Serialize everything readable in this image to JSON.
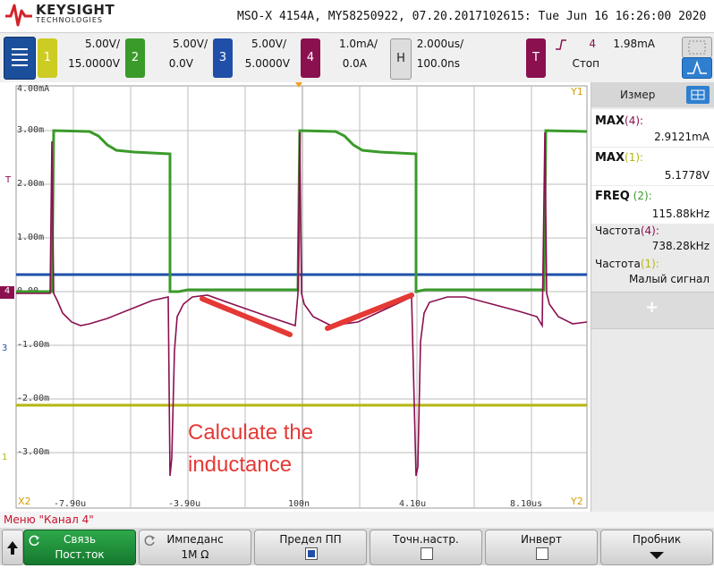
{
  "header": {
    "brand": "KEYSIGHT",
    "brand_sub": "TECHNOLOGIES",
    "title": "MSO-X 4154A, MY58250922, 07.20.2017102615: Tue Jun 16 16:26:00 2020"
  },
  "channels": [
    {
      "num": "1",
      "scale": "5.00V/",
      "offset": "15.0000V",
      "color": "#cccc22"
    },
    {
      "num": "2",
      "scale": "5.00V/",
      "offset": "0.0V",
      "color": "#3a9a2a"
    },
    {
      "num": "3",
      "scale": "5.00V/",
      "offset": "5.0000V",
      "color": "#1f4fa8"
    },
    {
      "num": "4",
      "scale": "1.0mA/",
      "offset": "0.0A",
      "color": "#8a1050"
    }
  ],
  "horizontal": {
    "label": "H",
    "scale": "2.000us/",
    "delay": "100.0ns"
  },
  "trigger": {
    "label": "T",
    "channel": "4",
    "level": "1.98mA",
    "state": "Стоп"
  },
  "yaxis": [
    "4.00mA",
    "3.00m",
    "2.00m",
    "1.00m",
    "0.00",
    "-1.00m",
    "-2.00m",
    "-3.00m"
  ],
  "xaxis": [
    "-7.90u",
    "-3.90u",
    "100n",
    "4.10u",
    "8.10us"
  ],
  "markers": {
    "y1": "Y1",
    "y2": "Y2",
    "x2": "X2",
    "ch4": "4",
    "ch3": "3",
    "ch1": "1",
    "trig": "T"
  },
  "annotation": {
    "line1": "Calculate the",
    "line2": "inductance",
    "color": "#e53935"
  },
  "measure": {
    "title": "Измер",
    "items": [
      {
        "name": "MAX",
        "src": "(4):",
        "value": "2.9121mA"
      },
      {
        "name": "MAX",
        "src": "(1):",
        "value": "5.1778V"
      },
      {
        "name": "FREQ",
        "src": "(2):",
        "value": "115.88kHz"
      },
      {
        "name": "Частота",
        "src": "(4):",
        "value": "738.28kHz"
      },
      {
        "name": "Частота",
        "src": "(1):",
        "value": "Малый сигнал"
      }
    ],
    "add_symbol": "+"
  },
  "menu": {
    "title": "Меню \"Канал 4\"",
    "softkeys": [
      {
        "l1": "Связь",
        "l2": "Пост.ток"
      },
      {
        "l1": "Импеданс",
        "l2": "1M Ω"
      },
      {
        "l1": "Предел ПП",
        "l2": ""
      },
      {
        "l1": "Точн.настр.",
        "l2": ""
      },
      {
        "l1": "Инверт",
        "l2": ""
      },
      {
        "l1": "Пробник",
        "l2": ""
      }
    ]
  }
}
